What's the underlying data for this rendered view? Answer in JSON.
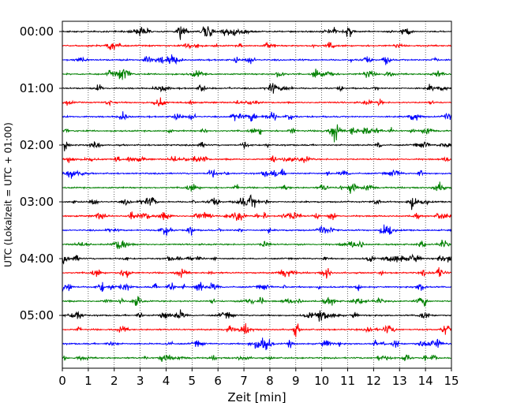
{
  "chart_data": {
    "type": "line",
    "title": "",
    "xlabel": "Zeit  [min]",
    "ylabel": "UTC (Lokalzeit = UTC + 01:00)",
    "xlim": [
      0,
      15
    ],
    "x_ticks": [
      "0",
      "1",
      "2",
      "3",
      "4",
      "5",
      "6",
      "7",
      "8",
      "9",
      "10",
      "11",
      "12",
      "13",
      "14",
      "15"
    ],
    "y_tick_labels": [
      "00:00",
      "01:00",
      "02:00",
      "03:00",
      "04:00",
      "05:00"
    ],
    "trace_count": 24,
    "traces_per_hour": 4,
    "trace_minutes": 15,
    "trace_colors": [
      "#000000",
      "#ff0000",
      "#0000ff",
      "#008000"
    ],
    "grid": "vertical dotted"
  }
}
